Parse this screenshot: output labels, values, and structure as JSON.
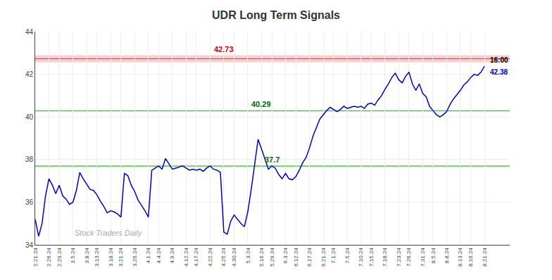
{
  "chart_data": {
    "type": "line",
    "title": "UDR Long Term Signals",
    "title_color": "#333333",
    "watermark": "Stock Traders Daily",
    "categories": [
      "2.21.24",
      null,
      null,
      null,
      "2.26.24",
      null,
      null,
      "2.29.24",
      null,
      null,
      null,
      "3.5.24",
      null,
      null,
      null,
      "3.8.24",
      null,
      null,
      "3.13.24",
      null,
      null,
      null,
      "3.18.24",
      null,
      null,
      "3.21.24",
      null,
      null,
      null,
      "3.26.24",
      null,
      null,
      null,
      "4.1.24",
      null,
      null,
      "4.4.24",
      null,
      null,
      null,
      "4.9.24",
      null,
      null,
      null,
      "4.12.24",
      null,
      null,
      "4.17.24",
      null,
      null,
      null,
      "4.22.24",
      null,
      null,
      null,
      "4.25.24",
      null,
      null,
      "4.30.24",
      null,
      null,
      null,
      "5.3.24",
      null,
      null,
      null,
      "5.16.24",
      null,
      null,
      "5.29.24",
      null,
      null,
      null,
      "6.3.24",
      null,
      null,
      "6.12.24",
      null,
      null,
      null,
      "6.17.24",
      null,
      null,
      null,
      "6.21.24",
      null,
      null,
      "7.1.24",
      null,
      null,
      null,
      "7.5.24",
      null,
      null,
      null,
      "7.10.24",
      null,
      null,
      "7.15.24",
      null,
      null,
      null,
      "7.18.24",
      null,
      null,
      null,
      "7.23.24",
      null,
      null,
      "7.26.24",
      null,
      null,
      null,
      "7.31.24",
      null,
      null,
      "8.5.24",
      null,
      null,
      null,
      "8.8.24",
      null,
      null,
      null,
      "8.13.24",
      null,
      null,
      "8.16.24",
      null,
      null,
      null,
      "8.21.24"
    ],
    "values": [
      35.2,
      34.4,
      35.0,
      36.3,
      37.1,
      36.8,
      36.4,
      36.8,
      36.3,
      36.15,
      35.9,
      36.0,
      36.55,
      37.4,
      37.1,
      36.85,
      36.6,
      36.55,
      36.35,
      36.05,
      35.8,
      35.5,
      35.6,
      35.55,
      35.45,
      35.3,
      37.35,
      37.25,
      36.8,
      36.5,
      36.1,
      35.85,
      35.6,
      35.3,
      37.5,
      37.6,
      37.7,
      37.55,
      38.05,
      37.8,
      37.55,
      37.6,
      37.65,
      37.7,
      37.6,
      37.5,
      37.55,
      37.5,
      37.55,
      37.45,
      37.6,
      37.7,
      37.55,
      37.5,
      37.4,
      34.6,
      34.5,
      35.1,
      35.4,
      35.2,
      35.0,
      34.85,
      35.55,
      36.6,
      37.7,
      38.95,
      38.5,
      38.0,
      37.55,
      37.7,
      37.6,
      37.3,
      37.1,
      37.35,
      37.1,
      37.05,
      37.2,
      37.5,
      37.85,
      38.1,
      38.55,
      39.1,
      39.5,
      39.9,
      40.1,
      40.3,
      40.45,
      40.35,
      40.25,
      40.35,
      40.5,
      40.4,
      40.45,
      40.5,
      40.45,
      40.5,
      40.4,
      40.6,
      40.65,
      40.55,
      40.8,
      41.0,
      41.3,
      41.55,
      41.85,
      42.05,
      41.75,
      41.6,
      41.9,
      42.1,
      41.55,
      41.25,
      41.55,
      41.1,
      40.95,
      40.5,
      40.3,
      40.1,
      40.0,
      40.1,
      40.25,
      40.6,
      40.85,
      41.05,
      41.25,
      41.5,
      41.65,
      41.85,
      42.0,
      41.95,
      42.1,
      42.38
    ],
    "color": "#0000cc",
    "reference_lines": [
      {
        "value": 42.73,
        "label": "42.73",
        "x": "4.25.24",
        "color": "#ffcccc",
        "label_color": "#cc0000"
      },
      {
        "value": 40.29,
        "label": "40.29",
        "x": "5.16.24",
        "color": "#44cc44",
        "label_color": "#006600"
      },
      {
        "value": 37.7,
        "label": "37.7",
        "x": "5.29.24",
        "color": "#44cc44",
        "label_color": "#006600"
      }
    ],
    "end_label": {
      "time": "16:00",
      "value": 42.38
    },
    "ylim": [
      34,
      44
    ],
    "yticks": [
      34,
      36,
      38,
      40,
      42,
      44
    ],
    "grid": true
  }
}
